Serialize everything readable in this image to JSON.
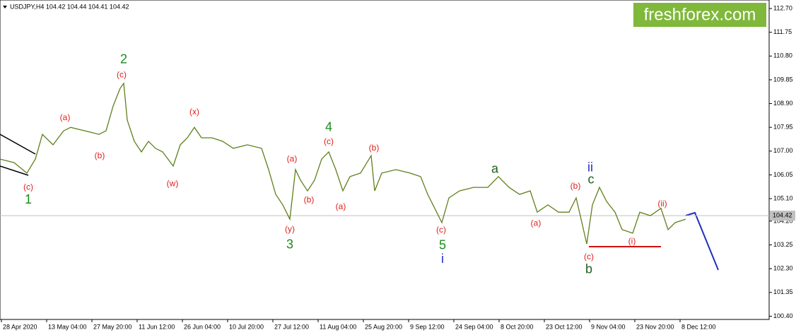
{
  "chart_data": {
    "type": "line",
    "header": "USDJPY,H4  104.42 104.44 104.41 104.42",
    "logo": "freshforex.com",
    "last_price": 104.42,
    "xlim": [
      0,
      1088
    ],
    "ylim": [
      100.27,
      113.04
    ],
    "yticks": [
      {
        "value": 112.7,
        "label": "112.70"
      },
      111.75,
      {
        "value": 110.8,
        "label": "110.80"
      },
      109.85,
      {
        "value": 108.9,
        "label": "108.90"
      },
      107.95,
      {
        "value": 107,
        "label": "107.00"
      },
      106.05,
      {
        "value": 105.1,
        "label": "105.10"
      },
      {
        "value": 104.2,
        "label": "104.20"
      },
      103.25,
      {
        "value": 102.3,
        "label": "102.30"
      },
      101.35,
      {
        "value": 100.4,
        "label": "100.40"
      }
    ],
    "xticks": [
      {
        "value": 2,
        "label": "28 Apr 2020"
      },
      {
        "value": 66,
        "label": "13 May 04:00"
      },
      {
        "value": 130,
        "label": "27 May 20:00"
      },
      {
        "value": 194,
        "label": "11 Jun 12:00"
      },
      {
        "value": 258,
        "label": "26 Jun 04:00"
      },
      {
        "value": 322,
        "label": "10 Jul 20:00"
      },
      {
        "value": 386,
        "label": "27 Jul 12:00"
      },
      {
        "value": 450,
        "label": "11 Aug 04:00"
      },
      {
        "value": 514,
        "label": "25 Aug 20:00"
      },
      {
        "value": 578,
        "label": "9 Sep 12:00"
      },
      {
        "value": 642,
        "label": "24 Sep 04:00"
      },
      {
        "value": 706,
        "label": "8 Oct 20:00"
      },
      {
        "value": 770,
        "label": "23 Oct 12:00"
      },
      {
        "value": 834,
        "label": "9 Nov 04:00"
      },
      {
        "value": 898,
        "label": "23 Nov 20:00"
      },
      {
        "value": 962,
        "label": "8 Dec 12:00"
      }
    ],
    "series": [
      {
        "name": "USDJPY",
        "color": "#5f7f1c",
        "x": [
          0,
          20,
          38,
          50,
          60,
          75,
          90,
          100,
          120,
          140,
          150,
          160,
          170,
          175,
          180,
          190,
          200,
          210,
          220,
          230,
          245,
          255,
          265,
          275,
          285,
          300,
          315,
          330,
          350,
          370,
          380,
          390,
          400,
          410,
          418,
          425,
          435,
          445,
          455,
          465,
          475,
          485,
          495,
          510,
          525,
          530,
          540,
          560,
          580,
          595,
          605,
          615,
          625,
          635,
          650,
          670,
          690,
          705,
          720,
          735,
          750,
          760,
          775,
          790,
          805,
          815,
          822,
          830,
          838,
          848,
          858,
          870,
          880,
          895,
          905,
          920,
          935,
          945,
          955,
          970
        ],
        "values": [
          106.68,
          106.54,
          106.12,
          106.68,
          107.67,
          107.25,
          107.81,
          107.95,
          107.81,
          107.67,
          107.81,
          108.8,
          109.51,
          109.71,
          108.24,
          107.39,
          106.97,
          107.39,
          107.11,
          106.97,
          106.4,
          107.25,
          107.53,
          107.95,
          107.53,
          107.53,
          107.39,
          107.11,
          107.25,
          107.11,
          106.26,
          105.27,
          104.85,
          104.28,
          106.26,
          105.84,
          105.41,
          105.84,
          106.68,
          106.97,
          106.26,
          105.41,
          105.98,
          106.12,
          106.82,
          105.41,
          106.12,
          106.26,
          106.12,
          105.98,
          105.27,
          104.71,
          104.14,
          105.13,
          105.41,
          105.55,
          105.55,
          105.98,
          105.55,
          105.27,
          105.41,
          104.56,
          104.85,
          104.56,
          104.56,
          105.13,
          104.28,
          103.29,
          104.85,
          105.55,
          104.99,
          104.56,
          103.86,
          103.72,
          104.56,
          104.42,
          104.71,
          103.86,
          104.14,
          104.28
        ]
      }
    ],
    "annotations": [
      {
        "text": "(c)",
        "x": 40,
        "y": 105.55,
        "color": "#e0201b"
      },
      {
        "text": "1",
        "x": 40,
        "y": 105.04,
        "color": "#1a8c1a"
      },
      {
        "text": "(a)",
        "x": 92,
        "y": 108.32,
        "color": "#e0201b"
      },
      {
        "text": "(b)",
        "x": 141,
        "y": 106.8,
        "color": "#e0201b"
      },
      {
        "text": "2",
        "x": 175,
        "y": 110.64,
        "color": "#1a8c1a"
      },
      {
        "text": "(c)",
        "x": 172,
        "y": 110.04,
        "color": "#e0201b"
      },
      {
        "text": "(w)",
        "x": 244,
        "y": 105.69,
        "color": "#e0201b"
      },
      {
        "text": "(x)",
        "x": 275,
        "y": 108.55,
        "color": "#e0201b"
      },
      {
        "text": "(a)",
        "x": 413,
        "y": 106.68,
        "color": "#e0201b"
      },
      {
        "text": "(b)",
        "x": 437,
        "y": 105.04,
        "color": "#e0201b"
      },
      {
        "text": "(y)",
        "x": 410,
        "y": 103.86,
        "color": "#e0201b"
      },
      {
        "text": "3",
        "x": 410,
        "y": 103.24,
        "color": "#1a8c1a"
      },
      {
        "text": "4",
        "x": 465,
        "y": 107.93,
        "color": "#1a8c1a"
      },
      {
        "text": "(c)",
        "x": 465,
        "y": 107.36,
        "color": "#e0201b"
      },
      {
        "text": "(b)",
        "x": 529,
        "y": 107.11,
        "color": "#e0201b"
      },
      {
        "text": "(a)",
        "x": 482,
        "y": 104.76,
        "color": "#e0201b"
      },
      {
        "text": "(c)",
        "x": 624,
        "y": 103.83,
        "color": "#e0201b"
      },
      {
        "text": "5",
        "x": 626,
        "y": 103.21,
        "color": "#1a8c1a"
      },
      {
        "text": "i",
        "x": 626,
        "y": 102.67,
        "color": "#1f2fbf"
      },
      {
        "text": "a",
        "x": 700,
        "y": 106.26,
        "color": "#1f5f1f"
      },
      {
        "text": "(a)",
        "x": 758,
        "y": 104.11,
        "color": "#e0201b"
      },
      {
        "text": "(b)",
        "x": 814,
        "y": 105.58,
        "color": "#e0201b"
      },
      {
        "text": "ii",
        "x": 835,
        "y": 106.32,
        "color": "#1f2fbf"
      },
      {
        "text": "c",
        "x": 836,
        "y": 105.84,
        "color": "#1f5f1f"
      },
      {
        "text": "(c)",
        "x": 833,
        "y": 102.76,
        "color": "#e0201b"
      },
      {
        "text": "b",
        "x": 833,
        "y": 102.25,
        "color": "#1f5f1f"
      },
      {
        "text": "(i)",
        "x": 894,
        "y": 103.38,
        "color": "#e0201b"
      },
      {
        "text": "(ii)",
        "x": 937,
        "y": 104.88,
        "color": "#e0201b"
      }
    ]
  }
}
